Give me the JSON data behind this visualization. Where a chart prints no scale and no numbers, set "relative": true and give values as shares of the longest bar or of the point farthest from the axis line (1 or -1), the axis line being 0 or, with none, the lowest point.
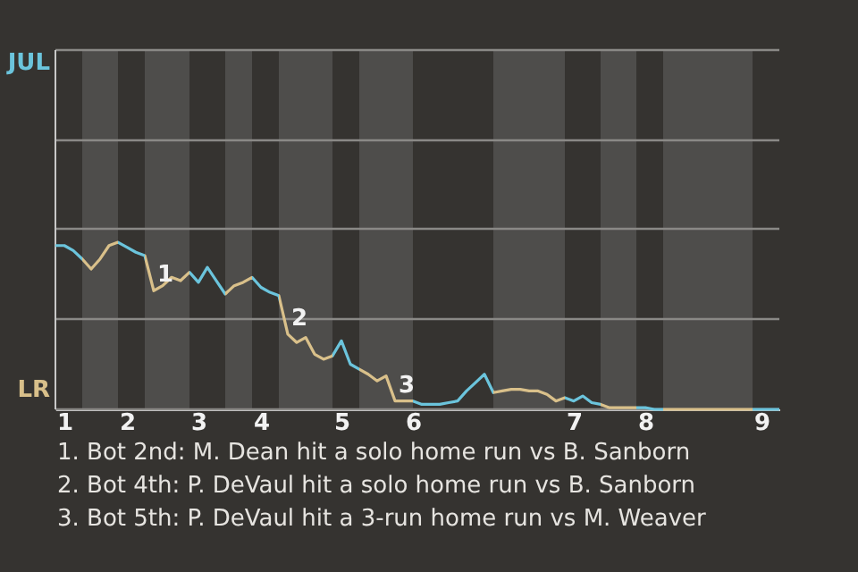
{
  "chart_data": {
    "type": "line",
    "relative": true,
    "categories": [
      null,
      "1",
      null,
      null,
      null,
      null,
      null,
      null,
      "2",
      null,
      null,
      null,
      null,
      null,
      null,
      null,
      "3",
      null,
      null,
      null,
      null,
      null,
      null,
      "4",
      null,
      null,
      null,
      null,
      null,
      null,
      null,
      null,
      "5",
      null,
      null,
      null,
      null,
      null,
      null,
      null,
      "6",
      null,
      null,
      null,
      null,
      null,
      null,
      null,
      null,
      null,
      null,
      null,
      null,
      null,
      null,
      null,
      null,
      null,
      "7",
      null,
      null,
      null,
      null,
      null,
      null,
      null,
      "8",
      null,
      null,
      null,
      null,
      null,
      null,
      null,
      null,
      null,
      null,
      null,
      null,
      "9",
      null,
      null
    ],
    "values": [
      0.98,
      0.98,
      0.95,
      0.9,
      0.84,
      0.9,
      0.98,
      1,
      0.97,
      0.94,
      0.92,
      0.71,
      0.74,
      0.79,
      0.77,
      0.82,
      0.76,
      0.85,
      0.77,
      0.69,
      0.74,
      0.76,
      0.79,
      0.73,
      0.7,
      0.68,
      0.45,
      0.4,
      0.43,
      0.33,
      0.3,
      0.32,
      0.41,
      0.27,
      0.24,
      0.21,
      0.17,
      0.2,
      0.05,
      0.05,
      0.05,
      0.03,
      0.03,
      0.03,
      0.04,
      0.05,
      0.11,
      0.16,
      0.21,
      0.1,
      0.11,
      0.12,
      0.12,
      0.11,
      0.11,
      0.09,
      0.05,
      0.07,
      0.05,
      0.08,
      0.04,
      0.03,
      0.01,
      0.01,
      0.01,
      0.01,
      0.01,
      0,
      0,
      0,
      0,
      0,
      0,
      0,
      0,
      0,
      0,
      0,
      0,
      0,
      0,
      0
    ],
    "colors": [
      "#6bc4dc",
      "#6bc4dc",
      "#6bc4dc",
      "#d9c08a",
      "#d9c08a",
      "#d9c08a",
      "#d9c08a",
      "#6bc4dc",
      "#6bc4dc",
      "#6bc4dc",
      "#d9c08a",
      "#d9c08a",
      "#d9c08a",
      "#d9c08a",
      "#d9c08a",
      "#6bc4dc",
      "#6bc4dc",
      "#6bc4dc",
      "#6bc4dc",
      "#d9c08a",
      "#d9c08a",
      "#d9c08a",
      "#6bc4dc",
      "#6bc4dc",
      "#6bc4dc",
      "#d9c08a",
      "#d9c08a",
      "#d9c08a",
      "#d9c08a",
      "#d9c08a",
      "#d9c08a",
      "#6bc4dc",
      "#6bc4dc",
      "#6bc4dc",
      "#d9c08a",
      "#d9c08a",
      "#d9c08a",
      "#d9c08a",
      "#d9c08a",
      "#d9c08a",
      "#6bc4dc",
      "#6bc4dc",
      "#6bc4dc",
      "#6bc4dc",
      "#6bc4dc",
      "#6bc4dc",
      "#6bc4dc",
      "#6bc4dc",
      "#6bc4dc",
      "#d9c08a",
      "#d9c08a",
      "#d9c08a",
      "#d9c08a",
      "#d9c08a",
      "#d9c08a",
      "#d9c08a",
      "#d9c08a",
      "#6bc4dc",
      "#6bc4dc",
      "#6bc4dc",
      "#6bc4dc",
      "#d9c08a",
      "#d9c08a",
      "#d9c08a",
      "#d9c08a",
      "#6bc4dc",
      "#6bc4dc",
      "#6bc4dc",
      "#d9c08a",
      "#d9c08a",
      "#d9c08a",
      "#d9c08a",
      "#d9c08a",
      "#d9c08a",
      "#d9c08a",
      "#d9c08a",
      "#d9c08a",
      "#d9c08a",
      "#6bc4dc",
      "#6bc4dc",
      "#6bc4dc",
      "#6bc4dc"
    ],
    "ref_lines": [
      {
        "axis": "y",
        "value": 0,
        "label": "LR"
      },
      {
        "axis": "y",
        "value": 0.54,
        "label": null
      },
      {
        "axis": "y",
        "value": 1.08,
        "label": null
      },
      {
        "axis": "y",
        "value": 1.61,
        "label": null
      },
      {
        "axis": "y",
        "value": 2.15,
        "label": "JUL"
      }
    ],
    "annotations": [
      {
        "text": "1",
        "y": 0.71
      },
      {
        "text": "2",
        "y": 0.45
      },
      {
        "text": "3",
        "y": 0.05
      },
      "1. Bot 2nd: M. Dean hit a solo home run vs B. Sanborn",
      "2. Bot 4th: P. DeVaul hit a solo home run vs B. Sanborn",
      "3. Bot 5th: P. DeVaul hit a 3-run home run vs M. Weaver"
    ]
  }
}
